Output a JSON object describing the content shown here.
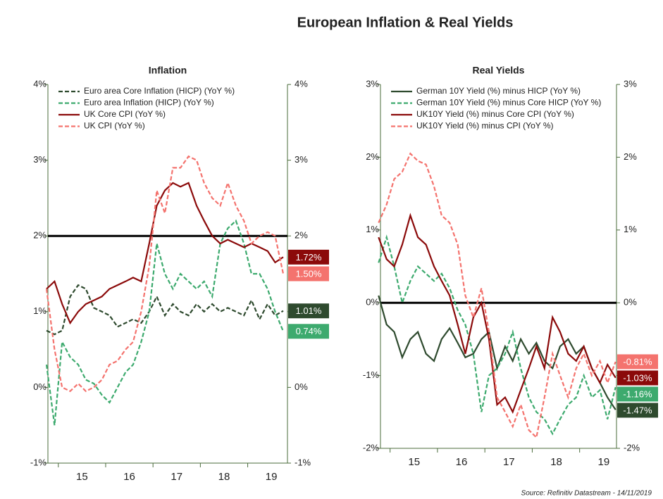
{
  "title": "European Inflation & Real Yields",
  "source": "Source: Refinitiv Datastream - 14/11/2019",
  "chart_data": [
    {
      "type": "line",
      "title": "Inflation",
      "x": [
        2014.75,
        2014.92,
        2015.08,
        2015.25,
        2015.42,
        2015.58,
        2015.75,
        2015.92,
        2016.08,
        2016.25,
        2016.42,
        2016.58,
        2016.75,
        2016.92,
        2017.08,
        2017.25,
        2017.42,
        2017.58,
        2017.75,
        2017.92,
        2018.08,
        2018.25,
        2018.42,
        2018.58,
        2018.75,
        2018.92,
        2019.08,
        2019.25,
        2019.42,
        2019.58,
        2019.75
      ],
      "xlim": [
        2014.78,
        2019.84
      ],
      "xticks": [
        {
          "value": 2015.5,
          "label": "15"
        },
        {
          "value": 2016.5,
          "label": "16"
        },
        {
          "value": 2017.5,
          "label": "17"
        },
        {
          "value": 2018.5,
          "label": "18"
        },
        {
          "value": 2019.5,
          "label": "19"
        }
      ],
      "ylim": [
        -1,
        4
      ],
      "yticks": [
        {
          "value": -1,
          "label": "-1%"
        },
        {
          "value": 0,
          "label": "0%"
        },
        {
          "value": 1,
          "label": "1%"
        },
        {
          "value": 2,
          "label": "2%"
        },
        {
          "value": 3,
          "label": "3%"
        },
        {
          "value": 4,
          "label": "4%"
        }
      ],
      "hline": 2,
      "series": [
        {
          "name": "Euro area Core Inflation (HICP) (YoY %)",
          "color": "#2e4a2e",
          "dash": true,
          "values": [
            0.75,
            0.7,
            0.75,
            1.2,
            1.35,
            1.3,
            1.05,
            1.0,
            0.95,
            0.8,
            0.85,
            0.9,
            0.85,
            1.0,
            1.2,
            0.95,
            1.1,
            1.0,
            0.95,
            1.1,
            1.0,
            1.1,
            1.0,
            1.05,
            1.0,
            0.95,
            1.15,
            0.9,
            1.1,
            0.95,
            1.01
          ],
          "end_label": {
            "value": 1.01,
            "label": "1.01%"
          }
        },
        {
          "name": "Euro area Inflation (HICP) (YoY %)",
          "color": "#3daa6e",
          "dash": true,
          "values": [
            0.3,
            -0.5,
            0.6,
            0.4,
            0.3,
            0.1,
            0.05,
            -0.1,
            -0.2,
            0.0,
            0.2,
            0.3,
            0.6,
            1.0,
            1.9,
            1.5,
            1.3,
            1.5,
            1.4,
            1.3,
            1.4,
            1.2,
            1.9,
            2.1,
            2.2,
            1.9,
            1.5,
            1.5,
            1.3,
            1.0,
            0.74
          ],
          "end_label": {
            "value": 0.74,
            "label": "0.74%"
          }
        },
        {
          "name": "UK Core CPI (YoY %)",
          "color": "#8b0a0a",
          "dash": false,
          "values": [
            1.3,
            1.4,
            1.1,
            0.85,
            1.0,
            1.1,
            1.15,
            1.2,
            1.3,
            1.35,
            1.4,
            1.45,
            1.4,
            1.9,
            2.4,
            2.6,
            2.7,
            2.65,
            2.7,
            2.4,
            2.2,
            2.0,
            1.9,
            1.95,
            1.9,
            1.85,
            1.9,
            1.85,
            1.8,
            1.65,
            1.72
          ],
          "end_label": {
            "value": 1.72,
            "label": "1.72%"
          }
        },
        {
          "name": "UK CPI (YoY %)",
          "color": "#f4736e",
          "dash": true,
          "values": [
            1.3,
            0.5,
            0.0,
            -0.05,
            0.05,
            -0.05,
            0.0,
            0.1,
            0.3,
            0.35,
            0.5,
            0.6,
            1.0,
            1.6,
            2.6,
            2.3,
            2.9,
            2.9,
            3.05,
            3.0,
            2.7,
            2.5,
            2.4,
            2.7,
            2.4,
            2.2,
            1.9,
            2.0,
            2.05,
            2.0,
            1.5
          ],
          "end_label": {
            "value": 1.5,
            "label": "1.50%"
          }
        }
      ]
    },
    {
      "type": "line",
      "title": "Real Yields",
      "x": [
        2014.75,
        2014.92,
        2015.08,
        2015.25,
        2015.42,
        2015.58,
        2015.75,
        2015.92,
        2016.08,
        2016.25,
        2016.42,
        2016.58,
        2016.75,
        2016.92,
        2017.08,
        2017.25,
        2017.42,
        2017.58,
        2017.75,
        2017.92,
        2018.08,
        2018.25,
        2018.42,
        2018.58,
        2018.75,
        2018.92,
        2019.08,
        2019.25,
        2019.42,
        2019.58,
        2019.75
      ],
      "xlim": [
        2014.79,
        2019.77
      ],
      "xticks": [
        {
          "value": 2015.5,
          "label": "15"
        },
        {
          "value": 2016.5,
          "label": "16"
        },
        {
          "value": 2017.5,
          "label": "17"
        },
        {
          "value": 2018.5,
          "label": "18"
        },
        {
          "value": 2019.5,
          "label": "19"
        }
      ],
      "ylim": [
        -2,
        3
      ],
      "yticks": [
        {
          "value": -2,
          "label": "-2%"
        },
        {
          "value": -1,
          "label": "-1%"
        },
        {
          "value": 0,
          "label": "0%"
        },
        {
          "value": 1,
          "label": "1%"
        },
        {
          "value": 2,
          "label": "2%"
        },
        {
          "value": 3,
          "label": "3%"
        }
      ],
      "hline": 0,
      "series": [
        {
          "name": "German 10Y Yield (%) minus HICP (YoY %)",
          "color": "#2e4a2e",
          "dash": false,
          "values": [
            0.1,
            -0.3,
            -0.4,
            -0.75,
            -0.5,
            -0.4,
            -0.7,
            -0.8,
            -0.5,
            -0.35,
            -0.55,
            -0.75,
            -0.7,
            -0.5,
            -0.4,
            -0.9,
            -0.6,
            -0.8,
            -0.5,
            -0.7,
            -0.55,
            -0.8,
            -0.9,
            -0.6,
            -0.5,
            -0.7,
            -0.6,
            -0.9,
            -1.1,
            -1.3,
            -1.47
          ],
          "end_label": {
            "value": -1.47,
            "label": "-1.47%"
          }
        },
        {
          "name": "German 10Y Yield (%) minus Core HICP (YoY %)",
          "color": "#3daa6e",
          "dash": true,
          "values": [
            0.55,
            0.9,
            0.5,
            0.0,
            0.3,
            0.5,
            0.4,
            0.3,
            0.4,
            0.2,
            -0.1,
            -0.3,
            -0.7,
            -1.5,
            -1.0,
            -0.9,
            -0.7,
            -0.4,
            -0.9,
            -1.3,
            -1.5,
            -1.6,
            -1.8,
            -1.6,
            -1.4,
            -1.3,
            -1.0,
            -1.3,
            -1.2,
            -1.6,
            -1.16
          ],
          "end_label": {
            "value": -1.16,
            "label": "-1.16%"
          }
        },
        {
          "name": "UK10Y Yield (%) minus Core CPI (YoY %)",
          "color": "#8b0a0a",
          "dash": false,
          "values": [
            0.9,
            0.6,
            0.5,
            0.8,
            1.2,
            0.9,
            0.8,
            0.5,
            0.3,
            0.1,
            -0.3,
            -0.7,
            -0.2,
            0.0,
            -0.5,
            -1.4,
            -1.3,
            -1.5,
            -1.2,
            -0.9,
            -0.6,
            -0.9,
            -0.2,
            -0.4,
            -0.7,
            -0.8,
            -0.6,
            -0.9,
            -1.1,
            -0.85,
            -1.03
          ],
          "end_label": {
            "value": -1.03,
            "label": "-1.03%"
          }
        },
        {
          "name": "UK10Y Yield (%) minus CPI (YoY %)",
          "color": "#f4736e",
          "dash": true,
          "values": [
            1.1,
            1.35,
            1.7,
            1.8,
            2.05,
            1.95,
            1.9,
            1.6,
            1.2,
            1.1,
            0.8,
            0.1,
            -0.2,
            0.2,
            -0.4,
            -1.3,
            -1.5,
            -1.7,
            -1.4,
            -1.75,
            -1.85,
            -1.3,
            -0.7,
            -1.0,
            -1.3,
            -0.9,
            -0.7,
            -1.0,
            -0.8,
            -1.1,
            -0.81
          ],
          "end_label": {
            "value": -0.81,
            "label": "-0.81%"
          }
        }
      ]
    }
  ]
}
